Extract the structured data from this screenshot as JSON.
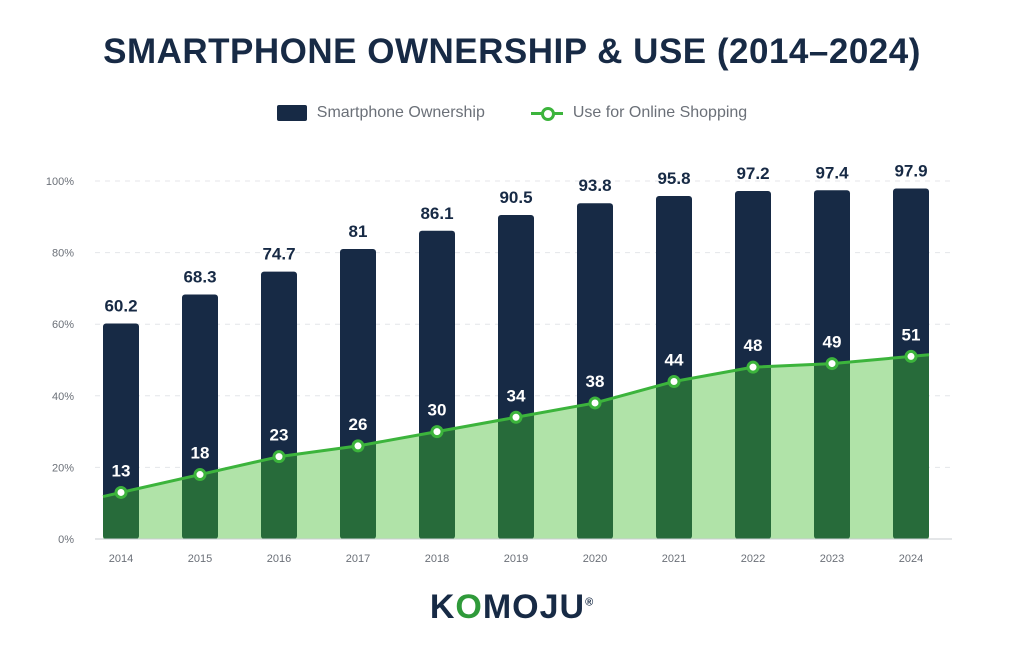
{
  "title": "SMARTPHONE OWNERSHIP & USE (2014–2024)",
  "legend": {
    "ownership_label": "Smartphone Ownership",
    "shopping_label": "Use for Online Shopping"
  },
  "logo": {
    "part1": "K",
    "part2": "O",
    "part3": "MOJU",
    "reg": "®"
  },
  "colors": {
    "ownership_bar": "#172a45",
    "shopping_bar": "#276b3a",
    "shopping_area": "#b0e3a8",
    "shopping_line": "#3cb43c"
  },
  "chart_data": {
    "type": "bar",
    "categories": [
      "2014",
      "2015",
      "2016",
      "2017",
      "2018",
      "2019",
      "2020",
      "2021",
      "2022",
      "2023",
      "2024"
    ],
    "series": [
      {
        "name": "Smartphone Ownership",
        "type": "bar",
        "values": [
          60.2,
          68.3,
          74.7,
          81,
          86.1,
          90.5,
          93.8,
          95.8,
          97.2,
          97.4,
          97.9
        ]
      },
      {
        "name": "Use for Online Shopping",
        "type": "line-area",
        "values": [
          13,
          18,
          23,
          26,
          30,
          34,
          38,
          44,
          48,
          49,
          51
        ]
      }
    ],
    "yticks": [
      "0%",
      "20%",
      "40%",
      "60%",
      "80%",
      "100%"
    ],
    "ylim": [
      0,
      100
    ],
    "grid": true,
    "legend_position": "top-center"
  }
}
